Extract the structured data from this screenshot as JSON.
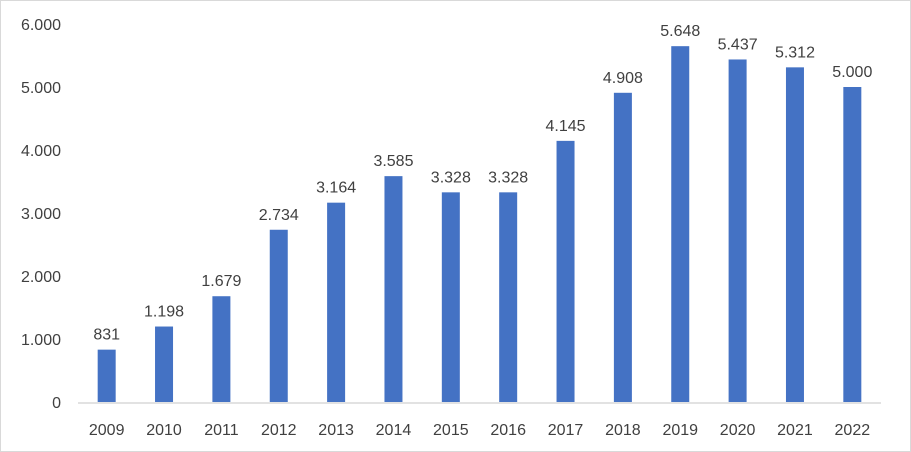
{
  "chart_data": {
    "type": "bar",
    "title": "",
    "xlabel": "",
    "ylabel": "",
    "categories": [
      "2009",
      "2010",
      "2011",
      "2012",
      "2013",
      "2014",
      "2015",
      "2016",
      "2017",
      "2018",
      "2019",
      "2020",
      "2021",
      "2022"
    ],
    "values": [
      831,
      1198,
      1679,
      2734,
      3164,
      3585,
      3328,
      3328,
      4145,
      4908,
      5648,
      5437,
      5312,
      5000
    ],
    "value_labels": [
      "831",
      "1.198",
      "1.679",
      "2.734",
      "3.164",
      "3.585",
      "3.328",
      "3.328",
      "4.145",
      "4.908",
      "5.648",
      "5.437",
      "5.312",
      "5.000"
    ],
    "ylim": [
      0,
      6000
    ],
    "yticks": [
      0,
      1000,
      2000,
      3000,
      4000,
      5000,
      6000
    ],
    "ytick_labels": [
      "0",
      "1.000",
      "2.000",
      "3.000",
      "4.000",
      "5.000",
      "6.000"
    ],
    "grid": false,
    "legend": "none",
    "bar_color": "#4472C4"
  }
}
